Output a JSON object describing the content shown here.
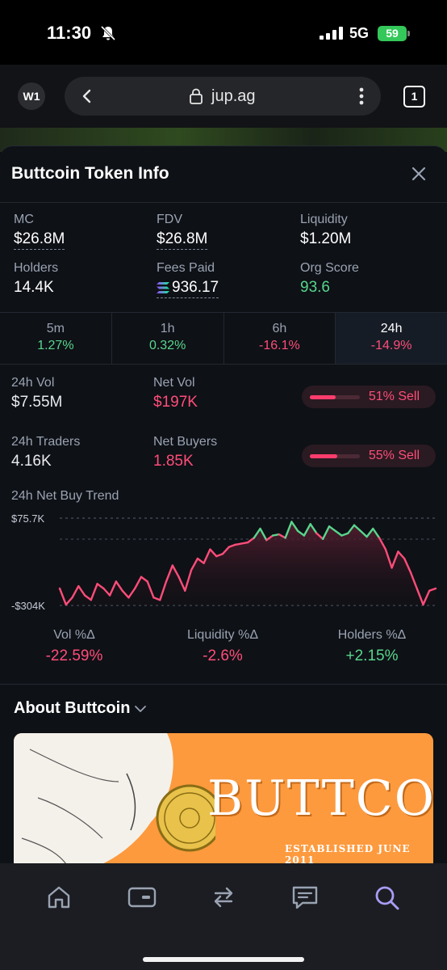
{
  "status_bar": {
    "time": "11:30",
    "network": "5G",
    "battery": "59"
  },
  "browser": {
    "workspace": "W1",
    "url": "jup.ag",
    "tab_count": "1"
  },
  "modal": {
    "title": "Buttcoin Token Info",
    "stats": [
      {
        "label": "MC",
        "value": "$26.8M"
      },
      {
        "label": "FDV",
        "value": "$26.8M"
      },
      {
        "label": "Liquidity",
        "value": "$1.20M"
      },
      {
        "label": "Holders",
        "value": "14.4K"
      },
      {
        "label": "Fees Paid",
        "value": "936.17"
      },
      {
        "label": "Org Score",
        "value": "93.6"
      }
    ],
    "timeframes": [
      {
        "label": "5m",
        "value": "1.27%",
        "dir": "pos"
      },
      {
        "label": "1h",
        "value": "0.32%",
        "dir": "pos"
      },
      {
        "label": "6h",
        "value": "-16.1%",
        "dir": "neg"
      },
      {
        "label": "24h",
        "value": "-14.9%",
        "dir": "neg",
        "active": true
      }
    ],
    "volume": {
      "vol_label": "24h Vol",
      "vol_value": "$7.55M",
      "netvol_label": "Net Vol",
      "netvol_value": "$197K",
      "vol_sell_text": "51% Sell",
      "vol_sell_fraction": 0.51,
      "traders_label": "24h Traders",
      "traders_value": "4.16K",
      "netbuyers_label": "Net Buyers",
      "netbuyers_value": "1.85K",
      "buyers_sell_text": "55% Sell",
      "buyers_sell_fraction": 0.55
    },
    "trend_title": "24h Net Buy Trend",
    "deltas": [
      {
        "label": "Vol %Δ",
        "value": "-22.59%",
        "dir": "neg"
      },
      {
        "label": "Liquidity %Δ",
        "value": "-2.6%",
        "dir": "neg"
      },
      {
        "label": "Holders %Δ",
        "value": "+2.15%",
        "dir": "pos"
      }
    ],
    "about_title": "About Buttcoin",
    "banner": {
      "title": "BUTTCOIN",
      "subtitle": "ESTABLISHED JUNE 2011"
    }
  },
  "chart_data": {
    "type": "line",
    "title": "24h Net Buy Trend",
    "ytick_labels": [
      "$75.7K",
      "-$304K"
    ],
    "ylim": [
      -304,
      75.7
    ],
    "y_unit": "K USD",
    "values": [
      -230,
      -300,
      -270,
      -220,
      -260,
      -280,
      -210,
      -230,
      -260,
      -200,
      -240,
      -270,
      -230,
      -180,
      -200,
      -270,
      -280,
      -200,
      -130,
      -180,
      -240,
      -150,
      -100,
      -120,
      -60,
      -90,
      -80,
      -50,
      -40,
      -35,
      -30,
      -10,
      30,
      -20,
      0,
      5,
      -10,
      60,
      20,
      0,
      50,
      10,
      -15,
      40,
      20,
      0,
      10,
      45,
      20,
      -5,
      30,
      -10,
      -60,
      -140,
      -70,
      -100,
      -160,
      -230,
      -300,
      -240,
      -230
    ]
  },
  "nav": [
    "home",
    "wallet",
    "swap",
    "chat",
    "search"
  ],
  "colors": {
    "positive": "#58d68d",
    "negative": "#ff4d79",
    "active_nav": "#a99cf5"
  }
}
